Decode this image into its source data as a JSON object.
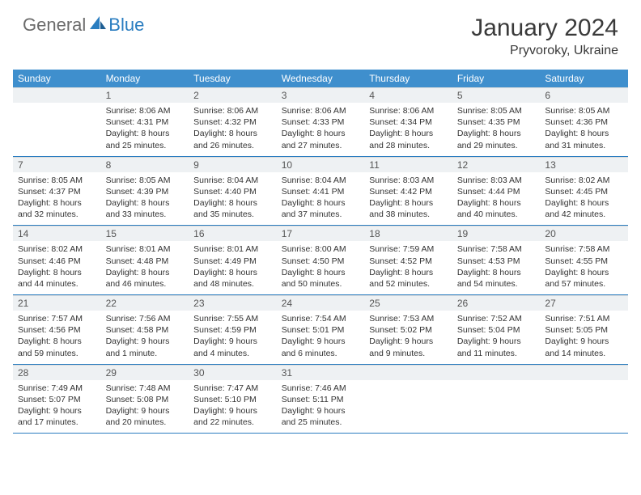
{
  "brand": {
    "general": "General",
    "blue": "Blue"
  },
  "title": {
    "month": "January 2024",
    "location": "Pryvoroky, Ukraine"
  },
  "colors": {
    "header_bg": "#3f8fcd",
    "header_text": "#ffffff",
    "daynum_bg": "#eef1f3",
    "week_border": "#2a7dc0",
    "logo_gray": "#6b6b6b",
    "logo_blue": "#2a7dc0"
  },
  "dow": [
    "Sunday",
    "Monday",
    "Tuesday",
    "Wednesday",
    "Thursday",
    "Friday",
    "Saturday"
  ],
  "weeks": [
    [
      {
        "n": "",
        "sr": "",
        "ss": "",
        "dl": ""
      },
      {
        "n": "1",
        "sr": "Sunrise: 8:06 AM",
        "ss": "Sunset: 4:31 PM",
        "dl": "Daylight: 8 hours and 25 minutes."
      },
      {
        "n": "2",
        "sr": "Sunrise: 8:06 AM",
        "ss": "Sunset: 4:32 PM",
        "dl": "Daylight: 8 hours and 26 minutes."
      },
      {
        "n": "3",
        "sr": "Sunrise: 8:06 AM",
        "ss": "Sunset: 4:33 PM",
        "dl": "Daylight: 8 hours and 27 minutes."
      },
      {
        "n": "4",
        "sr": "Sunrise: 8:06 AM",
        "ss": "Sunset: 4:34 PM",
        "dl": "Daylight: 8 hours and 28 minutes."
      },
      {
        "n": "5",
        "sr": "Sunrise: 8:05 AM",
        "ss": "Sunset: 4:35 PM",
        "dl": "Daylight: 8 hours and 29 minutes."
      },
      {
        "n": "6",
        "sr": "Sunrise: 8:05 AM",
        "ss": "Sunset: 4:36 PM",
        "dl": "Daylight: 8 hours and 31 minutes."
      }
    ],
    [
      {
        "n": "7",
        "sr": "Sunrise: 8:05 AM",
        "ss": "Sunset: 4:37 PM",
        "dl": "Daylight: 8 hours and 32 minutes."
      },
      {
        "n": "8",
        "sr": "Sunrise: 8:05 AM",
        "ss": "Sunset: 4:39 PM",
        "dl": "Daylight: 8 hours and 33 minutes."
      },
      {
        "n": "9",
        "sr": "Sunrise: 8:04 AM",
        "ss": "Sunset: 4:40 PM",
        "dl": "Daylight: 8 hours and 35 minutes."
      },
      {
        "n": "10",
        "sr": "Sunrise: 8:04 AM",
        "ss": "Sunset: 4:41 PM",
        "dl": "Daylight: 8 hours and 37 minutes."
      },
      {
        "n": "11",
        "sr": "Sunrise: 8:03 AM",
        "ss": "Sunset: 4:42 PM",
        "dl": "Daylight: 8 hours and 38 minutes."
      },
      {
        "n": "12",
        "sr": "Sunrise: 8:03 AM",
        "ss": "Sunset: 4:44 PM",
        "dl": "Daylight: 8 hours and 40 minutes."
      },
      {
        "n": "13",
        "sr": "Sunrise: 8:02 AM",
        "ss": "Sunset: 4:45 PM",
        "dl": "Daylight: 8 hours and 42 minutes."
      }
    ],
    [
      {
        "n": "14",
        "sr": "Sunrise: 8:02 AM",
        "ss": "Sunset: 4:46 PM",
        "dl": "Daylight: 8 hours and 44 minutes."
      },
      {
        "n": "15",
        "sr": "Sunrise: 8:01 AM",
        "ss": "Sunset: 4:48 PM",
        "dl": "Daylight: 8 hours and 46 minutes."
      },
      {
        "n": "16",
        "sr": "Sunrise: 8:01 AM",
        "ss": "Sunset: 4:49 PM",
        "dl": "Daylight: 8 hours and 48 minutes."
      },
      {
        "n": "17",
        "sr": "Sunrise: 8:00 AM",
        "ss": "Sunset: 4:50 PM",
        "dl": "Daylight: 8 hours and 50 minutes."
      },
      {
        "n": "18",
        "sr": "Sunrise: 7:59 AM",
        "ss": "Sunset: 4:52 PM",
        "dl": "Daylight: 8 hours and 52 minutes."
      },
      {
        "n": "19",
        "sr": "Sunrise: 7:58 AM",
        "ss": "Sunset: 4:53 PM",
        "dl": "Daylight: 8 hours and 54 minutes."
      },
      {
        "n": "20",
        "sr": "Sunrise: 7:58 AM",
        "ss": "Sunset: 4:55 PM",
        "dl": "Daylight: 8 hours and 57 minutes."
      }
    ],
    [
      {
        "n": "21",
        "sr": "Sunrise: 7:57 AM",
        "ss": "Sunset: 4:56 PM",
        "dl": "Daylight: 8 hours and 59 minutes."
      },
      {
        "n": "22",
        "sr": "Sunrise: 7:56 AM",
        "ss": "Sunset: 4:58 PM",
        "dl": "Daylight: 9 hours and 1 minute."
      },
      {
        "n": "23",
        "sr": "Sunrise: 7:55 AM",
        "ss": "Sunset: 4:59 PM",
        "dl": "Daylight: 9 hours and 4 minutes."
      },
      {
        "n": "24",
        "sr": "Sunrise: 7:54 AM",
        "ss": "Sunset: 5:01 PM",
        "dl": "Daylight: 9 hours and 6 minutes."
      },
      {
        "n": "25",
        "sr": "Sunrise: 7:53 AM",
        "ss": "Sunset: 5:02 PM",
        "dl": "Daylight: 9 hours and 9 minutes."
      },
      {
        "n": "26",
        "sr": "Sunrise: 7:52 AM",
        "ss": "Sunset: 5:04 PM",
        "dl": "Daylight: 9 hours and 11 minutes."
      },
      {
        "n": "27",
        "sr": "Sunrise: 7:51 AM",
        "ss": "Sunset: 5:05 PM",
        "dl": "Daylight: 9 hours and 14 minutes."
      }
    ],
    [
      {
        "n": "28",
        "sr": "Sunrise: 7:49 AM",
        "ss": "Sunset: 5:07 PM",
        "dl": "Daylight: 9 hours and 17 minutes."
      },
      {
        "n": "29",
        "sr": "Sunrise: 7:48 AM",
        "ss": "Sunset: 5:08 PM",
        "dl": "Daylight: 9 hours and 20 minutes."
      },
      {
        "n": "30",
        "sr": "Sunrise: 7:47 AM",
        "ss": "Sunset: 5:10 PM",
        "dl": "Daylight: 9 hours and 22 minutes."
      },
      {
        "n": "31",
        "sr": "Sunrise: 7:46 AM",
        "ss": "Sunset: 5:11 PM",
        "dl": "Daylight: 9 hours and 25 minutes."
      },
      {
        "n": "",
        "sr": "",
        "ss": "",
        "dl": ""
      },
      {
        "n": "",
        "sr": "",
        "ss": "",
        "dl": ""
      },
      {
        "n": "",
        "sr": "",
        "ss": "",
        "dl": ""
      }
    ]
  ]
}
